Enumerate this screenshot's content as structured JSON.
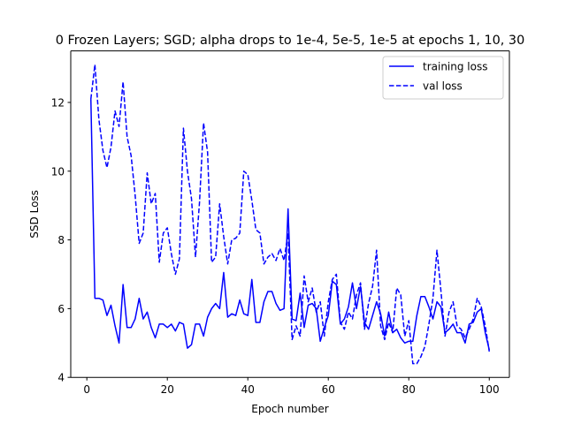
{
  "chart_data": {
    "type": "line",
    "title": "0 Frozen Layers; SGD; alpha drops to 1e-4, 5e-5, 1e-5 at epochs 1, 10, 30",
    "xlabel": "Epoch number",
    "ylabel": "SSD Loss",
    "xlim": [
      -4,
      105
    ],
    "ylim": [
      4,
      13.5
    ],
    "x_ticks": [
      0,
      20,
      40,
      60,
      80,
      100
    ],
    "y_ticks": [
      4,
      6,
      8,
      10,
      12
    ],
    "grid": false,
    "legend_position": "upper right",
    "x": [
      1,
      2,
      3,
      4,
      5,
      6,
      7,
      8,
      9,
      10,
      11,
      12,
      13,
      14,
      15,
      16,
      17,
      18,
      19,
      20,
      21,
      22,
      23,
      24,
      25,
      26,
      27,
      28,
      29,
      30,
      31,
      32,
      33,
      34,
      35,
      36,
      37,
      38,
      39,
      40,
      41,
      42,
      43,
      44,
      45,
      46,
      47,
      48,
      49,
      50,
      51,
      52,
      53,
      54,
      55,
      56,
      57,
      58,
      59,
      60,
      61,
      62,
      63,
      64,
      65,
      66,
      67,
      68,
      69,
      70,
      71,
      72,
      73,
      74,
      75,
      76,
      77,
      78,
      79,
      80,
      81,
      82,
      83,
      84,
      85,
      86,
      87,
      88,
      89,
      90,
      91,
      92,
      93,
      94,
      95,
      96,
      97,
      98,
      99,
      100
    ],
    "series": [
      {
        "name": "training loss",
        "color": "#0000ff",
        "dash": "solid",
        "values": [
          12.1,
          6.3,
          6.3,
          6.25,
          5.8,
          6.1,
          5.5,
          5.0,
          6.7,
          5.45,
          5.45,
          5.7,
          6.3,
          5.7,
          5.9,
          5.45,
          5.15,
          5.55,
          5.55,
          5.45,
          5.55,
          5.35,
          5.6,
          5.55,
          4.85,
          4.95,
          5.55,
          5.55,
          5.2,
          5.75,
          6.0,
          6.15,
          6.0,
          7.05,
          5.75,
          5.85,
          5.8,
          6.25,
          5.85,
          5.8,
          6.85,
          5.6,
          5.6,
          6.2,
          6.5,
          6.5,
          6.15,
          5.95,
          6.0,
          8.9,
          5.7,
          5.65,
          6.45,
          5.45,
          6.1,
          6.15,
          6.0,
          5.05,
          5.45,
          5.8,
          6.8,
          6.7,
          5.55,
          5.7,
          6.05,
          6.75,
          6.0,
          6.65,
          5.6,
          5.4,
          5.8,
          6.2,
          5.85,
          5.2,
          5.9,
          5.3,
          5.4,
          5.15,
          5.0,
          5.05,
          5.05,
          5.8,
          6.35,
          6.35,
          6.05,
          5.7,
          6.2,
          6.05,
          5.3,
          5.4,
          5.55,
          5.3,
          5.3,
          5.0,
          5.55,
          5.6,
          5.9,
          6.0,
          5.3,
          4.8
        ]
      },
      {
        "name": "val loss",
        "color": "#0000ff",
        "dash": "dashed",
        "values": [
          12.1,
          13.1,
          11.5,
          10.6,
          10.1,
          10.7,
          11.75,
          11.3,
          12.6,
          11.0,
          10.45,
          9.3,
          7.9,
          8.2,
          9.95,
          9.05,
          9.35,
          7.35,
          8.2,
          8.35,
          7.6,
          7.0,
          7.45,
          11.25,
          10.0,
          9.2,
          7.5,
          9.1,
          11.4,
          10.55,
          7.35,
          7.5,
          9.05,
          8.1,
          7.3,
          8.0,
          8.05,
          8.2,
          10.0,
          9.9,
          9.15,
          8.3,
          8.2,
          7.3,
          7.5,
          7.6,
          7.4,
          7.75,
          7.4,
          8.2,
          5.1,
          5.5,
          5.2,
          6.95,
          6.2,
          6.6,
          5.9,
          6.2,
          5.2,
          6.2,
          6.85,
          7.0,
          5.6,
          5.4,
          5.9,
          5.7,
          6.4,
          6.75,
          5.4,
          6.15,
          6.65,
          7.7,
          5.5,
          5.1,
          5.6,
          5.3,
          6.6,
          6.4,
          5.2,
          5.65,
          4.4,
          4.4,
          4.6,
          4.9,
          5.55,
          6.3,
          7.7,
          6.5,
          5.2,
          5.9,
          6.2,
          5.5,
          5.4,
          5.15,
          5.4,
          5.7,
          6.3,
          6.05,
          5.5,
          4.75
        ]
      }
    ]
  }
}
